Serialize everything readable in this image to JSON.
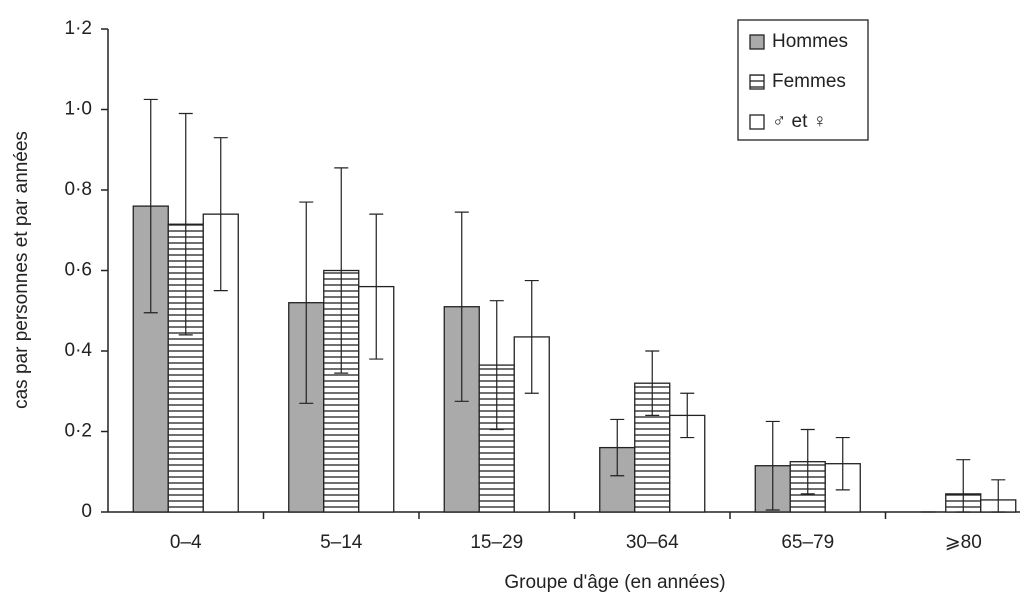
{
  "chart_data": {
    "type": "bar",
    "x_label": "Groupe d'âge (en années)",
    "y_label": "cas par personnes et par années",
    "categories": [
      "0–4",
      "5–14",
      "15–29",
      "30–64",
      "65–79",
      "⩾80"
    ],
    "series": [
      {
        "name": "Hommes",
        "color": "#aaaaaa",
        "values": [
          0.76,
          0.52,
          0.51,
          0.16,
          0.115,
          0
        ],
        "errors": [
          0.265,
          0.25,
          0.235,
          0.07,
          0.11,
          0
        ]
      },
      {
        "name": "Femmes",
        "color": "#ffffff",
        "hatch": "horizontal",
        "values": [
          0.715,
          0.6,
          0.365,
          0.32,
          0.125,
          0.045
        ],
        "errors": [
          0.275,
          0.255,
          0.16,
          0.08,
          0.08,
          0.085
        ]
      },
      {
        "name": "♂ et ♀",
        "color": "#ffffff",
        "values": [
          0.74,
          0.56,
          0.435,
          0.24,
          0.12,
          0.03
        ],
        "errors": [
          0.19,
          0.18,
          0.14,
          0.055,
          0.065,
          0.05
        ]
      }
    ],
    "ylim": [
      0,
      1.2
    ],
    "yticks": [
      0,
      {
        "value": 0.2,
        "label": "0·2"
      },
      {
        "value": 0.4,
        "label": "0·4"
      },
      {
        "value": 0.6,
        "label": "0·6"
      },
      {
        "value": 0.8,
        "label": "0·8"
      },
      {
        "value": 1.0,
        "label": "1·0"
      },
      {
        "value": 1.2,
        "label": "1·2"
      }
    ],
    "legend": "upper right"
  }
}
